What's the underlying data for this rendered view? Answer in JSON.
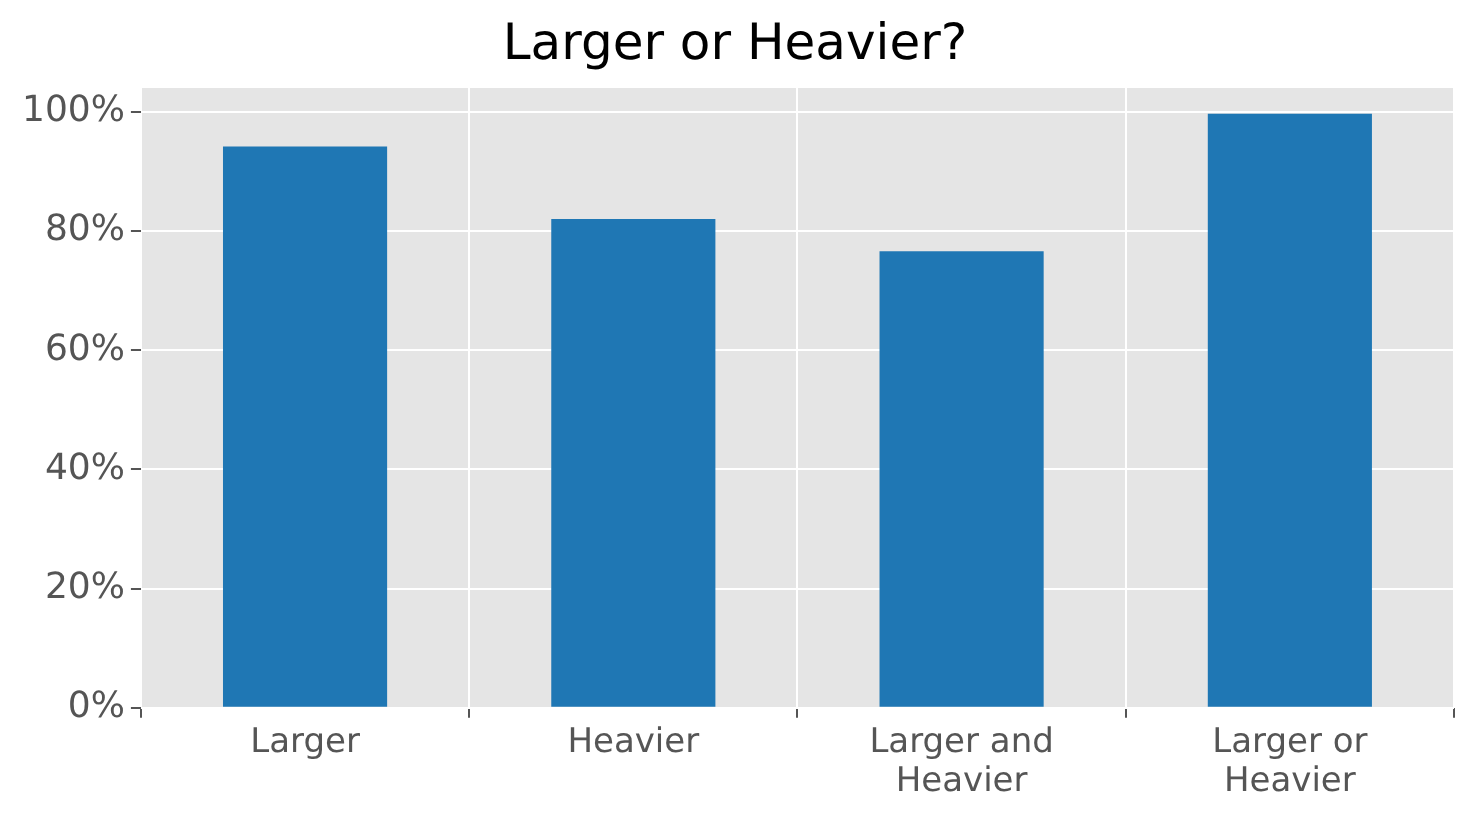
{
  "chart_data": {
    "type": "bar",
    "title": "Larger or Heavier?",
    "categories": [
      "Larger",
      "Heavier",
      "Larger and Heavier",
      "Larger or Heavier"
    ],
    "values": [
      94.2,
      82.0,
      76.6,
      99.7
    ],
    "color": "#1f77b4",
    "ylim": [
      0,
      104
    ],
    "yticks": [
      {
        "value": 0,
        "label": "0%"
      },
      {
        "value": 20,
        "label": "20%"
      },
      {
        "value": 40,
        "label": "40%"
      },
      {
        "value": 60,
        "label": "60%"
      },
      {
        "value": 80,
        "label": "80%"
      },
      {
        "value": 100,
        "label": "100%"
      }
    ],
    "grid": true,
    "legend": false
  }
}
